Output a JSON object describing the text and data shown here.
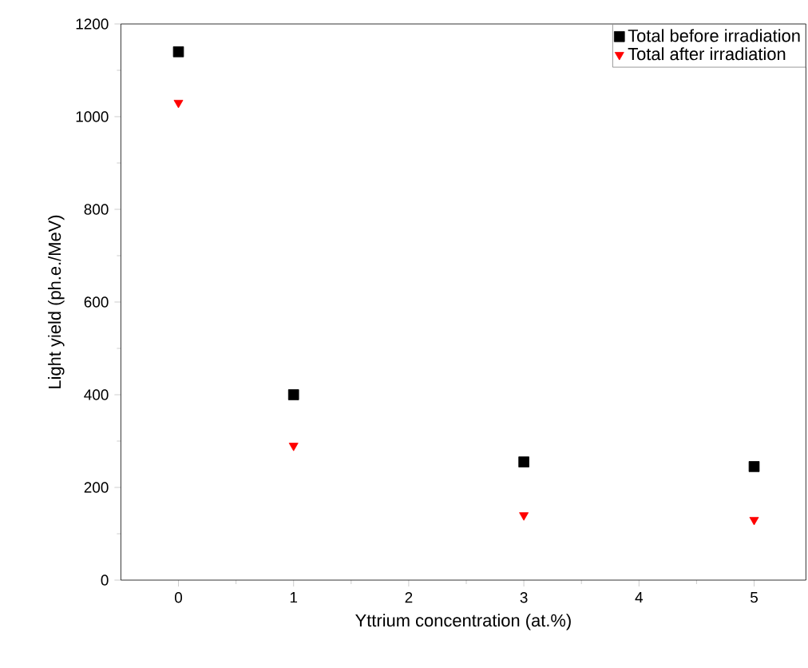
{
  "chart_data": {
    "type": "scatter",
    "xlabel": "Yttrium concentration (at.%)",
    "ylabel": "Light yield (ph.e./MeV)",
    "x": [
      0,
      1,
      3,
      5
    ],
    "series": [
      {
        "name": "Total before irradiation",
        "color": "#000000",
        "marker": "square",
        "values": [
          1140,
          400,
          255,
          245
        ]
      },
      {
        "name": "Total after irradiation",
        "color": "#ff0000",
        "marker": "triangle",
        "values": [
          1030,
          290,
          140,
          130
        ]
      }
    ],
    "xlim": [
      -0.5,
      5.45
    ],
    "ylim": [
      0,
      1200
    ],
    "xticks": [
      0,
      1,
      2,
      3,
      4,
      5
    ],
    "yticks": [
      0,
      200,
      400,
      600,
      800,
      1000,
      1200
    ],
    "grid": false,
    "legend": "top right"
  }
}
